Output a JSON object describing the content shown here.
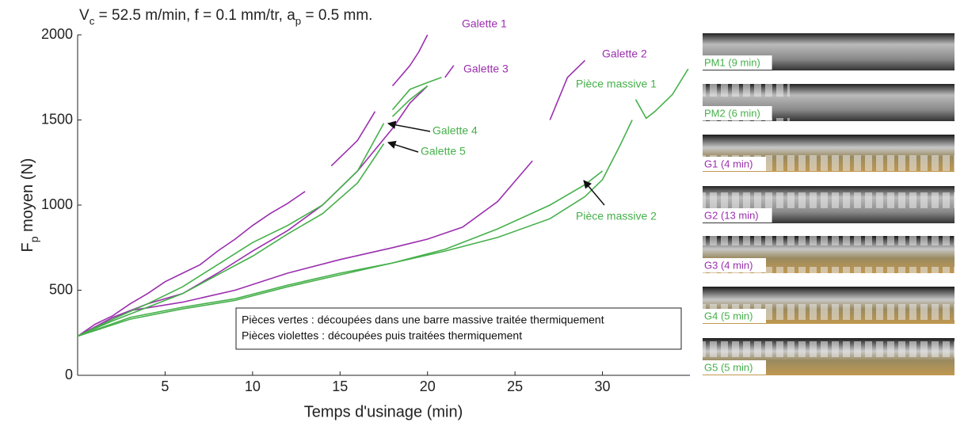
{
  "chart_data": {
    "type": "line",
    "title_parts": [
      "V",
      "c",
      " = 52.5 m/min, f = 0.1 mm/tr, a",
      "p",
      " = 0.5 mm."
    ],
    "y_label_parts": [
      "F",
      "p",
      " moyen (N)"
    ],
    "x_label": "Temps d'usinage (min)",
    "xlim": [
      0,
      35
    ],
    "ylim": [
      0,
      2000
    ],
    "xticks": [
      5,
      10,
      15,
      20,
      25,
      30
    ],
    "yticks": [
      0,
      500,
      1000,
      1500,
      2000
    ],
    "series": [
      {
        "name": "Galette 1",
        "color": "#9b2fae",
        "x": [
          0,
          1,
          2,
          3,
          4,
          5,
          6,
          7,
          8,
          9,
          10,
          11,
          12,
          13,
          13.5,
          14.5,
          15,
          16,
          17,
          17.5,
          18,
          18.5,
          19,
          19.5,
          20
        ],
        "values": [
          230,
          300,
          350,
          420,
          480,
          550,
          600,
          650,
          730,
          800,
          880,
          950,
          1010,
          1080,
          null,
          1230,
          1280,
          1380,
          1550,
          null,
          1700,
          1760,
          1820,
          1900,
          2000
        ]
      },
      {
        "name": "Galette 2",
        "color": "#9b2fae",
        "x": [
          0,
          3,
          6,
          9,
          12,
          15,
          18,
          20,
          22,
          24,
          25.5,
          26,
          26.5,
          27,
          28,
          29
        ],
        "values": [
          230,
          380,
          430,
          500,
          600,
          680,
          750,
          800,
          870,
          1020,
          1200,
          1260,
          null,
          1500,
          1750,
          1850
        ]
      },
      {
        "name": "Galette 3",
        "color": "#9b2fae",
        "x": [
          0,
          2,
          4,
          6,
          8,
          10,
          12,
          14,
          16,
          18,
          19,
          20,
          20.5,
          21,
          21.5
        ],
        "values": [
          230,
          340,
          420,
          480,
          600,
          730,
          850,
          1000,
          1200,
          1450,
          1600,
          1700,
          null,
          1750,
          1820
        ]
      },
      {
        "name": "Galette 4",
        "color": "#45b04a",
        "x": [
          0,
          2,
          4,
          6,
          8,
          10,
          12,
          14,
          16,
          17.5,
          17.6,
          18,
          19,
          20,
          20.8
        ],
        "values": [
          230,
          330,
          420,
          520,
          650,
          780,
          880,
          1000,
          1200,
          1480,
          null,
          1560,
          1680,
          1720,
          1750
        ]
      },
      {
        "name": "Galette 5",
        "color": "#45b04a",
        "x": [
          0,
          2,
          4,
          6,
          8,
          10,
          12,
          14,
          16,
          17.5,
          17.7,
          18,
          19,
          20
        ],
        "values": [
          230,
          320,
          400,
          480,
          590,
          700,
          830,
          950,
          1130,
          1360,
          null,
          1520,
          1620,
          1700
        ]
      },
      {
        "name": "Pièce massive 1",
        "color": "#45b04a",
        "x": [
          0,
          3,
          6,
          9,
          12,
          15,
          18,
          21,
          24,
          27,
          29,
          30,
          31,
          31.7,
          31.8,
          31.9,
          32.5,
          33,
          34,
          34.9
        ],
        "values": [
          230,
          340,
          400,
          450,
          530,
          600,
          660,
          730,
          810,
          920,
          1050,
          1150,
          1350,
          1500,
          null,
          1620,
          1510,
          1550,
          1650,
          1800
        ]
      },
      {
        "name": "Pièce massive 2",
        "color": "#45b04a",
        "x": [
          0,
          3,
          6,
          9,
          12,
          15,
          18,
          21,
          24,
          27,
          29,
          30
        ],
        "values": [
          230,
          330,
          390,
          440,
          520,
          590,
          660,
          740,
          860,
          1000,
          1120,
          1200
        ]
      }
    ],
    "annotations": [
      {
        "text": "Galette 1",
        "color": "#9b2fae"
      },
      {
        "text": "Galette 3",
        "color": "#9b2fae"
      },
      {
        "text": "Galette 2",
        "color": "#9b2fae"
      },
      {
        "text": "Pièce massive 1",
        "color": "#45b04a"
      },
      {
        "text": "Galette 4",
        "color": "#45b04a"
      },
      {
        "text": "Galette 5",
        "color": "#45b04a"
      },
      {
        "text": "Pièce massive 2",
        "color": "#45b04a"
      }
    ],
    "note_lines": [
      "Pièces vertes : découpées dans une barre massive traitée thermiquement",
      "Pièces violettes : découpées puis traitées thermiquement"
    ],
    "photos": [
      {
        "label": "PM1 (9 min)",
        "color": "#45b04a"
      },
      {
        "label": "PM2 (6 min)",
        "color": "#45b04a"
      },
      {
        "label": "G1 (4 min)",
        "color": "#9b2fae"
      },
      {
        "label": "G2 (13 min)",
        "color": "#9b2fae"
      },
      {
        "label": "G3 (4 min)",
        "color": "#9b2fae"
      },
      {
        "label": "G4 (5 min)",
        "color": "#45b04a"
      },
      {
        "label": "G5 (5 min)",
        "color": "#45b04a"
      }
    ]
  }
}
